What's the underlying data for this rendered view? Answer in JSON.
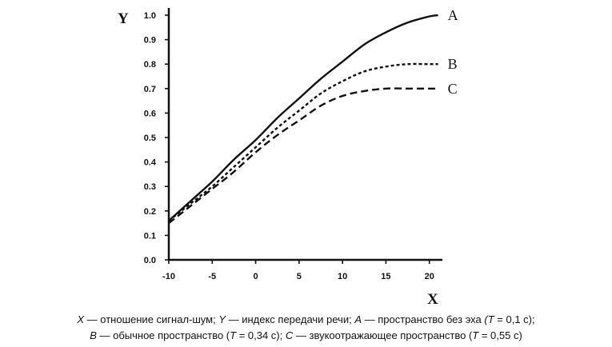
{
  "chart_data": {
    "type": "line",
    "xlabel": "X",
    "ylabel": "Y",
    "xlim": [
      -10,
      21.5
    ],
    "ylim": [
      0,
      1.0
    ],
    "x_ticks": [
      "-10",
      "-5",
      "0",
      "5",
      "10",
      "15",
      "20"
    ],
    "y_ticks": [
      "0.0",
      "0.1",
      "0.2",
      "0.3",
      "0.4",
      "0.5",
      "0.6",
      "0.7",
      "0.8",
      "0.9",
      "1.0"
    ],
    "series": [
      {
        "name": "A",
        "style": "solid",
        "x": [
          -10,
          -7.5,
          -5,
          -2.5,
          0,
          2.5,
          5,
          7.5,
          10,
          12.5,
          15,
          17.5,
          20,
          21
        ],
        "y": [
          0.16,
          0.24,
          0.32,
          0.41,
          0.49,
          0.58,
          0.66,
          0.74,
          0.81,
          0.88,
          0.93,
          0.97,
          0.995,
          1.0
        ]
      },
      {
        "name": "B",
        "style": "dotted",
        "x": [
          -10,
          -7.5,
          -5,
          -2.5,
          0,
          2.5,
          5,
          7.5,
          10,
          12.5,
          15,
          17.5,
          20,
          21
        ],
        "y": [
          0.16,
          0.23,
          0.3,
          0.38,
          0.46,
          0.54,
          0.61,
          0.68,
          0.73,
          0.77,
          0.79,
          0.8,
          0.8,
          0.8
        ]
      },
      {
        "name": "C",
        "style": "dashed",
        "x": [
          -10,
          -7.5,
          -5,
          -2.5,
          0,
          2.5,
          5,
          7.5,
          10,
          12.5,
          15,
          17.5,
          20,
          21
        ],
        "y": [
          0.15,
          0.22,
          0.29,
          0.36,
          0.44,
          0.51,
          0.57,
          0.63,
          0.67,
          0.69,
          0.7,
          0.7,
          0.7,
          0.7
        ]
      }
    ],
    "grid": false,
    "legend": "none"
  },
  "caption": {
    "line1_parts": [
      {
        "text": "X",
        "italic": true
      },
      {
        "text": " — отношение сигнал-шум; ",
        "italic": false
      },
      {
        "text": "Y",
        "italic": true
      },
      {
        "text": " — индекс передачи речи; ",
        "italic": false
      },
      {
        "text": "A",
        "italic": true
      },
      {
        "text": " — пространство без эха ",
        "italic": false
      },
      {
        "text": "(T",
        "italic": true
      },
      {
        "text": " = 0,1 с);",
        "italic": false
      }
    ],
    "line2_parts": [
      {
        "text": "B",
        "italic": true
      },
      {
        "text": " — обычное пространство (",
        "italic": false
      },
      {
        "text": "T",
        "italic": true
      },
      {
        "text": " = 0,34 с); ",
        "italic": false
      },
      {
        "text": "C",
        "italic": true
      },
      {
        "text": " — звукоотражающее пространство (",
        "italic": false
      },
      {
        "text": "T",
        "italic": true
      },
      {
        "text": " = 0,55 с)",
        "italic": false
      }
    ]
  }
}
